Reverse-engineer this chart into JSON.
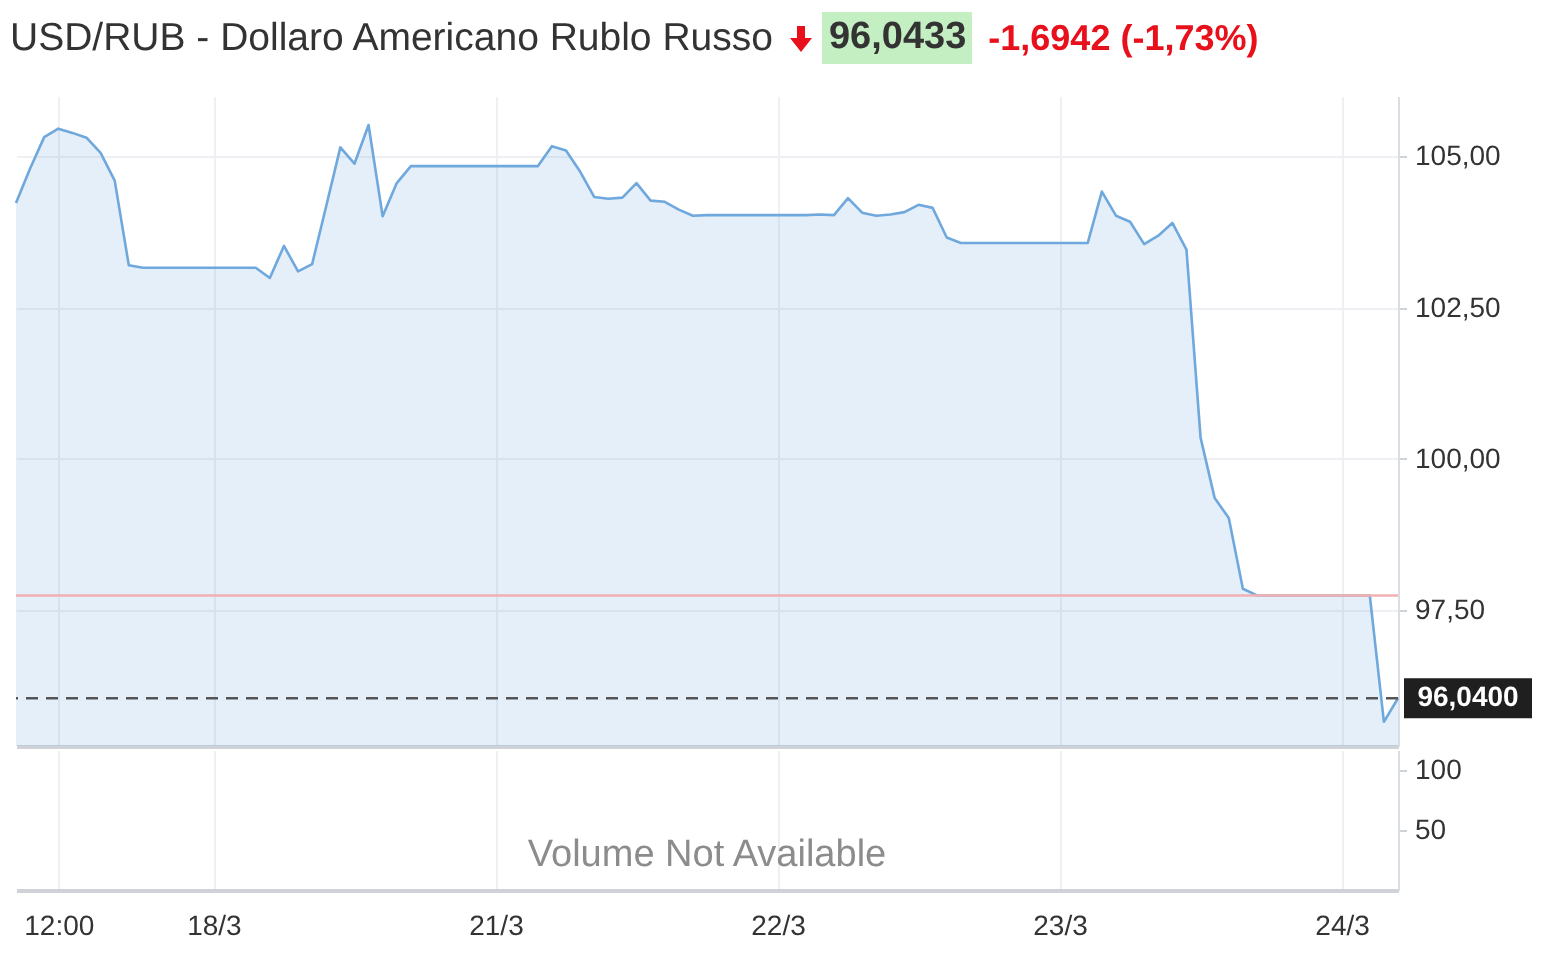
{
  "chart_data": [
    {
      "type": "area",
      "title": "USD/RUB - Dollaro Americano Rublo Russo",
      "annotations": [
        "96,0433",
        "-1,6942 (-1,73%)"
      ],
      "categories": [
        null,
        null,
        null,
        null,
        null,
        null,
        null,
        null,
        null,
        null,
        null,
        null,
        null,
        null,
        null,
        null,
        null,
        null,
        null,
        null,
        null,
        null,
        null,
        null,
        null,
        null,
        null,
        null,
        null,
        null,
        null,
        null,
        null,
        null,
        null,
        null,
        null,
        null,
        null,
        null,
        null,
        null,
        null,
        null,
        null,
        null,
        null,
        null,
        null,
        null,
        null,
        null,
        null,
        null,
        null,
        null,
        null,
        null,
        null,
        null,
        null,
        null,
        null,
        null,
        null,
        null,
        null,
        null,
        null,
        null,
        null,
        null,
        null,
        null,
        null,
        null,
        null,
        null,
        null,
        null,
        null,
        null,
        null,
        null,
        null,
        null,
        null,
        null,
        null,
        null,
        null,
        null,
        null,
        null,
        null,
        null,
        null,
        null,
        null
      ],
      "series": [
        {
          "color": "#6fa8dc",
          "values": [
            104.23,
            104.8,
            105.32,
            105.46,
            105.39,
            105.31,
            105.06,
            104.6,
            103.2,
            103.16,
            103.16,
            103.16,
            103.16,
            103.16,
            103.16,
            103.16,
            103.16,
            103.16,
            102.99,
            103.52,
            103.1,
            103.22,
            104.18,
            105.15,
            104.88,
            105.52,
            104.01,
            104.56,
            104.84,
            104.84,
            104.84,
            104.84,
            104.84,
            104.84,
            104.84,
            104.84,
            104.84,
            104.84,
            105.17,
            105.1,
            104.75,
            104.33,
            104.3,
            104.32,
            104.56,
            104.27,
            104.25,
            104.12,
            104.02,
            104.03,
            104.03,
            104.03,
            104.03,
            104.03,
            104.03,
            104.03,
            104.03,
            104.04,
            104.03,
            104.31,
            104.07,
            104.02,
            104.04,
            104.08,
            104.2,
            104.15,
            103.66,
            103.57,
            103.57,
            103.57,
            103.57,
            103.57,
            103.57,
            103.57,
            103.57,
            103.57,
            103.57,
            104.42,
            104.02,
            103.92,
            103.55,
            103.69,
            103.9,
            103.46,
            100.35,
            99.35,
            99.02,
            97.85,
            97.74,
            97.74,
            97.74,
            97.74,
            97.74,
            97.74,
            97.74,
            97.74,
            97.74,
            95.65,
            96.04
          ]
        }
      ],
      "ylim": [
        95.25,
        106
      ],
      "yticks": [
        {
          "value": 97.5,
          "label": "97,50"
        },
        {
          "value": 100,
          "label": "100,00"
        },
        {
          "value": 102.5,
          "label": "102,50"
        },
        {
          "value": 105,
          "label": "105,00"
        }
      ],
      "grid": true,
      "tick_labels": "y",
      "ref_lines": [
        {
          "axis": "y",
          "value": 97.74,
          "color": "#f2b0b0"
        },
        {
          "axis": "y",
          "value": 96.04,
          "label": "96,0400",
          "color": "#555555",
          "line_style": "dashed"
        }
      ]
    },
    {
      "type": "bar",
      "categories": [
        null,
        null,
        null,
        "12:00",
        null,
        null,
        null,
        null,
        null,
        null,
        null,
        null,
        null,
        null,
        "18/3",
        null,
        null,
        null,
        null,
        null,
        null,
        null,
        null,
        null,
        null,
        null,
        null,
        null,
        null,
        null,
        null,
        null,
        null,
        null,
        "21/3",
        null,
        null,
        null,
        null,
        null,
        null,
        null,
        null,
        null,
        null,
        null,
        null,
        null,
        null,
        null,
        null,
        null,
        null,
        null,
        "22/3",
        null,
        null,
        null,
        null,
        null,
        null,
        null,
        null,
        null,
        null,
        null,
        null,
        null,
        null,
        null,
        null,
        null,
        null,
        null,
        "23/3",
        null,
        null,
        null,
        null,
        null,
        null,
        null,
        null,
        null,
        null,
        null,
        null,
        null,
        null,
        null,
        null,
        null,
        null,
        null,
        "24/3",
        null,
        null,
        null,
        null
      ],
      "values": [
        null,
        null,
        null,
        null,
        null,
        null,
        null,
        null,
        null,
        null,
        null,
        null,
        null,
        null,
        null,
        null,
        null,
        null,
        null,
        null,
        null,
        null,
        null,
        null,
        null,
        null,
        null,
        null,
        null,
        null,
        null,
        null,
        null,
        null,
        null,
        null,
        null,
        null,
        null,
        null,
        null,
        null,
        null,
        null,
        null,
        null,
        null,
        null,
        null,
        null,
        null,
        null,
        null,
        null,
        null,
        null,
        null,
        null,
        null,
        null,
        null,
        null,
        null,
        null,
        null,
        null,
        null,
        null,
        null,
        null,
        null,
        null,
        null,
        null,
        null,
        null,
        null,
        null,
        null,
        null,
        null,
        null,
        null,
        null,
        null,
        null,
        null,
        null,
        null,
        null,
        null,
        null,
        null,
        null,
        null,
        null,
        null,
        null,
        null
      ],
      "ylim": [
        0,
        117
      ],
      "yticks": [
        50,
        100
      ],
      "grid": "x",
      "annotations": [
        "Volume Not Available"
      ]
    }
  ]
}
